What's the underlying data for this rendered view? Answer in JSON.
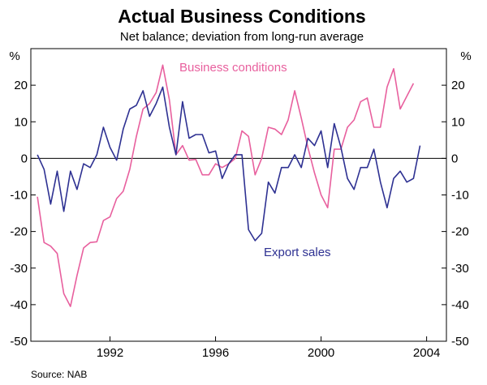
{
  "chart_data": {
    "type": "line",
    "title": "Actual Business Conditions",
    "subtitle": "Net balance; deviation from long-run average",
    "unit_left": "%",
    "unit_right": "%",
    "source": "Source: NAB",
    "ylim": [
      -50,
      30
    ],
    "yticks": [
      20,
      10,
      0,
      -10,
      -20,
      -30,
      -40,
      -50
    ],
    "xlim": [
      1989.0,
      2004.75
    ],
    "xticks": [
      {
        "value": 1992,
        "label": "1992"
      },
      {
        "value": 1996,
        "label": "1996"
      },
      {
        "value": 2000,
        "label": "2000"
      },
      {
        "value": 2004,
        "label": "2004"
      }
    ],
    "x_start": 1989.25,
    "x_step": 0.25,
    "series": [
      {
        "name": "Business conditions",
        "color": "#e8609e",
        "values": [
          -10.5,
          -23.0,
          -24.0,
          -26.0,
          -37.0,
          -40.5,
          -32.0,
          -24.5,
          -23.0,
          -22.8,
          -17.0,
          -16.0,
          -11.0,
          -9.0,
          -3.0,
          6.0,
          13.5,
          15.0,
          18.0,
          25.5,
          16.0,
          1.0,
          3.5,
          -0.5,
          -0.3,
          -4.5,
          -4.5,
          -1.5,
          -2.5,
          -1.5,
          0.0,
          7.5,
          6.0,
          -4.5,
          0.0,
          8.5,
          8.0,
          6.5,
          10.5,
          18.5,
          11.0,
          3.0,
          -4.0,
          -10.0,
          -13.5,
          2.5,
          2.5,
          8.5,
          10.5,
          15.5,
          16.5,
          8.5,
          8.5,
          19.5,
          24.5,
          13.5,
          17.0,
          20.5
        ]
      },
      {
        "name": "Export sales",
        "color": "#2e3192",
        "values": [
          1.0,
          -3.0,
          -12.5,
          -3.5,
          -14.5,
          -3.5,
          -8.5,
          -1.5,
          -2.5,
          1.0,
          8.5,
          3.0,
          -0.5,
          8.0,
          13.5,
          14.5,
          18.5,
          11.5,
          15.0,
          19.5,
          8.5,
          1.0,
          15.5,
          5.5,
          6.5,
          6.5,
          1.5,
          2.0,
          -5.5,
          -1.5,
          1.0,
          1.0,
          -19.5,
          -22.5,
          -20.5,
          -6.5,
          -9.5,
          -2.5,
          -2.5,
          1.0,
          -2.5,
          5.5,
          3.5,
          7.5,
          -2.5,
          9.5,
          3.0,
          -5.5,
          -8.5,
          -2.5,
          -2.5,
          2.5,
          -6.5,
          -13.5,
          -5.5,
          -3.5,
          -6.5,
          -5.5,
          3.5
        ]
      }
    ],
    "annotations": [
      {
        "series": "Business conditions",
        "text": "Business conditions"
      },
      {
        "series": "Export sales",
        "text": "Export sales"
      }
    ]
  }
}
